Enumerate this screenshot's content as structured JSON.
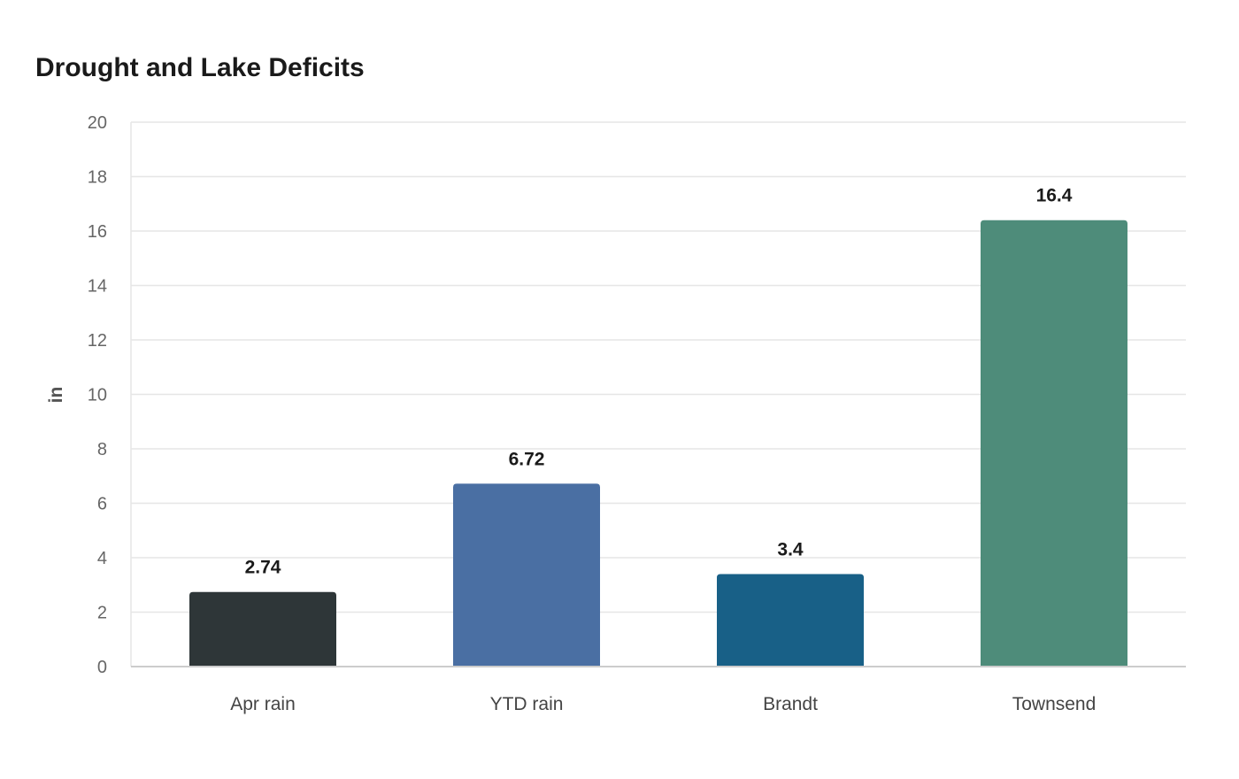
{
  "chart_data": {
    "type": "bar",
    "title": "Drought and Lake Deficits",
    "xlabel": "",
    "ylabel": "in",
    "categories": [
      "Apr rain",
      "YTD rain",
      "Brandt",
      "Townsend"
    ],
    "values": [
      2.74,
      6.72,
      3.4,
      16.4
    ],
    "value_labels": [
      "2.74",
      "6.72",
      "3.4",
      "16.4"
    ],
    "colors": [
      "#2e3638",
      "#4a6fa3",
      "#186087",
      "#4e8c7a"
    ],
    "ylim": [
      0,
      20
    ],
    "yticks": [
      0,
      2,
      4,
      6,
      8,
      10,
      12,
      14,
      16,
      18,
      20
    ],
    "grid": true,
    "legend": "none"
  }
}
